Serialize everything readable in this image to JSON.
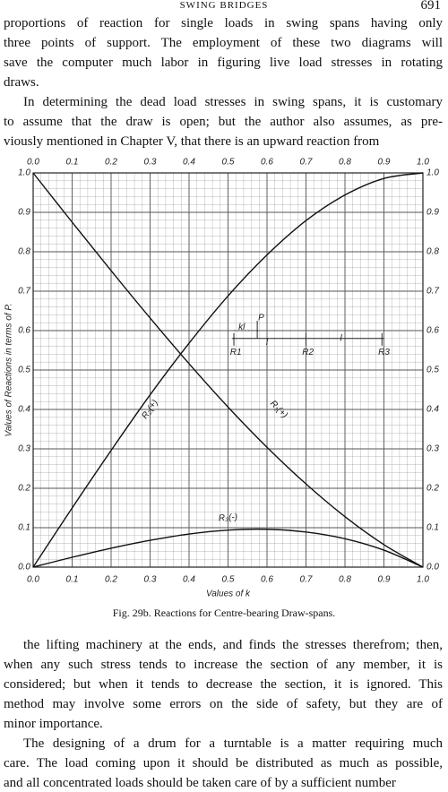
{
  "header": {
    "title": "SWING BRIDGES",
    "page_number": "691"
  },
  "top_paragraphs": [
    [
      "proportions of reaction for single loads in swing spans having only",
      "three points of support. The employment of these two diagrams will",
      "save the computer much labor in figuring live load stresses in rotating",
      "draws."
    ],
    [
      "In determining the dead load stresses in swing spans, it is customary",
      "to assume that the draw is open; but the author also assumes, as pre-",
      "viously mentioned in Chapter V, that there is an upward reaction from"
    ]
  ],
  "chart_data": {
    "type": "line",
    "x_label": "Values of k",
    "y_label": "Values of Reactions in terms of P.",
    "x": [
      0,
      0.1,
      0.2,
      0.3,
      0.4,
      0.5,
      0.6,
      0.7,
      0.8,
      0.9,
      1
    ],
    "series": [
      {
        "name": "R₁(+)",
        "color": "#111111",
        "values": [
          1,
          0.875,
          0.752,
          0.632,
          0.516,
          0.406,
          0.304,
          0.211,
          0.128,
          0.057,
          0
        ]
      },
      {
        "name": "R₂(+)",
        "color": "#111111",
        "values": [
          0,
          0.15,
          0.296,
          0.437,
          0.568,
          0.688,
          0.792,
          0.879,
          0.944,
          0.986,
          1
        ]
      },
      {
        "name": "R₃(-)",
        "color": "#111111",
        "values": [
          0,
          0.025,
          0.048,
          0.068,
          0.084,
          0.094,
          0.096,
          0.089,
          0.072,
          0.043,
          0
        ]
      }
    ],
    "xlim": [
      0,
      1
    ],
    "ylim": [
      0,
      1
    ],
    "xticks": [
      {
        "value": 0,
        "label": "0.0"
      },
      0.1,
      0.2,
      0.3,
      0.4,
      0.5,
      0.6,
      0.7,
      0.8,
      0.9,
      {
        "value": 1,
        "label": "1.0"
      }
    ],
    "yticks": [
      {
        "value": 0,
        "label": "0.0"
      },
      0.1,
      0.2,
      0.3,
      0.4,
      0.5,
      0.6,
      0.7,
      0.8,
      0.9,
      {
        "value": 1,
        "label": "1.0"
      }
    ],
    "grid": true,
    "inset_labels": [
      "kl",
      "P",
      "l",
      "l",
      "R1",
      "R2",
      "R3"
    ]
  },
  "caption": "Fig. 29b. Reactions for Centre-bearing Draw-spans.",
  "bottom_paragraphs": [
    [
      "the lifting machinery at the ends, and finds the stresses therefrom; then,",
      "when any such stress tends to increase the section of any member, it is",
      "considered; but when it tends to decrease the section, it is ignored. This",
      "method may involve some errors on the side of safety, but they are of",
      "minor importance."
    ],
    [
      "The designing of a drum for a turntable is a matter requiring much",
      "care. The load coming upon it should be distributed as much as possible,",
      "and all concentrated loads should be taken care of by a sufficient number"
    ]
  ]
}
